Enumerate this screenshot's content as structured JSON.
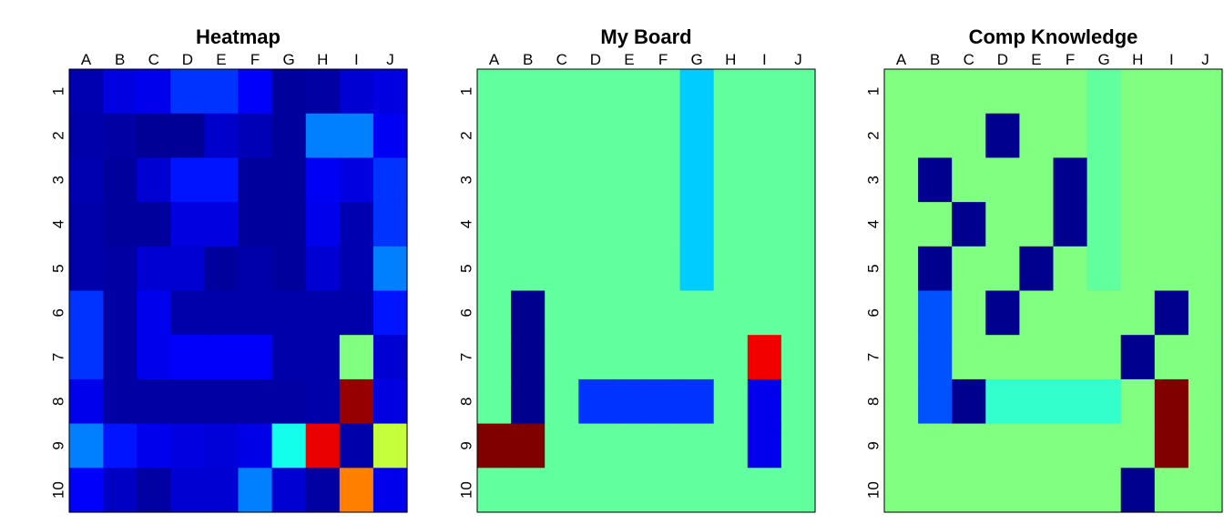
{
  "chart_data": [
    {
      "type": "heatmap",
      "title": "Heatmap",
      "columns": [
        "A",
        "B",
        "C",
        "D",
        "E",
        "F",
        "G",
        "H",
        "I",
        "J"
      ],
      "rows": [
        "1",
        "2",
        "3",
        "4",
        "5",
        "6",
        "7",
        "8",
        "9",
        "10"
      ],
      "colormap": [
        "#00008F",
        "#0000FF",
        "#00FFFF",
        "#80FF80",
        "#FFFF00",
        "#FF0000",
        "#800000"
      ],
      "scale_range": [
        0,
        100
      ],
      "values": [
        [
          5,
          12,
          14,
          20,
          20,
          16,
          2,
          3,
          10,
          12
        ],
        [
          4,
          3,
          1,
          1,
          9,
          6,
          2,
          25,
          25,
          15
        ],
        [
          5,
          2,
          10,
          18,
          18,
          2,
          2,
          15,
          12,
          20
        ],
        [
          4,
          2,
          2,
          12,
          12,
          2,
          2,
          14,
          5,
          20
        ],
        [
          4,
          3,
          10,
          10,
          2,
          4,
          2,
          10,
          5,
          25
        ],
        [
          20,
          3,
          14,
          4,
          4,
          4,
          4,
          4,
          4,
          18
        ],
        [
          20,
          3,
          14,
          16,
          16,
          16,
          4,
          4,
          50,
          10
        ],
        [
          14,
          3,
          3,
          3,
          3,
          3,
          3,
          4,
          97,
          12
        ],
        [
          25,
          18,
          14,
          12,
          11,
          13,
          36,
          86,
          4,
          59
        ],
        [
          16,
          8,
          3,
          10,
          10,
          25,
          10,
          3,
          75,
          14
        ]
      ]
    },
    {
      "type": "heatmap",
      "title": "My Board",
      "columns": [
        "A",
        "B",
        "C",
        "D",
        "E",
        "F",
        "G",
        "H",
        "I",
        "J"
      ],
      "rows": [
        "1",
        "2",
        "3",
        "4",
        "5",
        "6",
        "7",
        "8",
        "9",
        "10"
      ],
      "colormap": [
        "#00008F",
        "#0000FF",
        "#00FFFF",
        "#80FF80",
        "#FFFF00",
        "#FF0000",
        "#800000"
      ],
      "scale_range": [
        0,
        100
      ],
      "values": [
        [
          46,
          46,
          46,
          46,
          46,
          46,
          30,
          46,
          46,
          46
        ],
        [
          46,
          46,
          46,
          46,
          46,
          46,
          30,
          46,
          46,
          46
        ],
        [
          46,
          46,
          46,
          46,
          46,
          46,
          30,
          46,
          46,
          46
        ],
        [
          46,
          46,
          46,
          46,
          46,
          46,
          30,
          46,
          46,
          46
        ],
        [
          46,
          46,
          46,
          46,
          46,
          46,
          30,
          46,
          46,
          46
        ],
        [
          46,
          0,
          46,
          46,
          46,
          46,
          46,
          46,
          46,
          46
        ],
        [
          46,
          0,
          46,
          46,
          46,
          46,
          46,
          46,
          85,
          46
        ],
        [
          46,
          0,
          46,
          20,
          20,
          20,
          20,
          46,
          14,
          46
        ],
        [
          100,
          100,
          46,
          46,
          46,
          46,
          46,
          46,
          14,
          46
        ],
        [
          46,
          46,
          46,
          46,
          46,
          46,
          46,
          46,
          46,
          46
        ]
      ]
    },
    {
      "type": "heatmap",
      "title": "Comp Knowledge",
      "columns": [
        "A",
        "B",
        "C",
        "D",
        "E",
        "F",
        "G",
        "H",
        "I",
        "J"
      ],
      "rows": [
        "1",
        "2",
        "3",
        "4",
        "5",
        "6",
        "7",
        "8",
        "9",
        "10"
      ],
      "colormap": [
        "#00008F",
        "#0000FF",
        "#00FFFF",
        "#80FF80",
        "#FFFF00",
        "#FF0000",
        "#800000"
      ],
      "scale_range": [
        0,
        100
      ],
      "values": [
        [
          50,
          50,
          50,
          50,
          50,
          50,
          46,
          50,
          50,
          50
        ],
        [
          50,
          50,
          50,
          0,
          50,
          50,
          46,
          50,
          50,
          50
        ],
        [
          50,
          0,
          50,
          50,
          50,
          0,
          46,
          50,
          50,
          50
        ],
        [
          50,
          50,
          0,
          50,
          50,
          0,
          46,
          50,
          50,
          50
        ],
        [
          50,
          0,
          50,
          50,
          0,
          50,
          46,
          50,
          50,
          50
        ],
        [
          50,
          22,
          50,
          0,
          50,
          50,
          50,
          50,
          0,
          50
        ],
        [
          50,
          22,
          50,
          50,
          50,
          50,
          50,
          0,
          50,
          50
        ],
        [
          50,
          22,
          0,
          40,
          40,
          40,
          40,
          50,
          100,
          50
        ],
        [
          50,
          50,
          50,
          50,
          50,
          50,
          50,
          50,
          100,
          50
        ],
        [
          50,
          50,
          50,
          50,
          50,
          50,
          50,
          0,
          50,
          50
        ]
      ]
    }
  ]
}
